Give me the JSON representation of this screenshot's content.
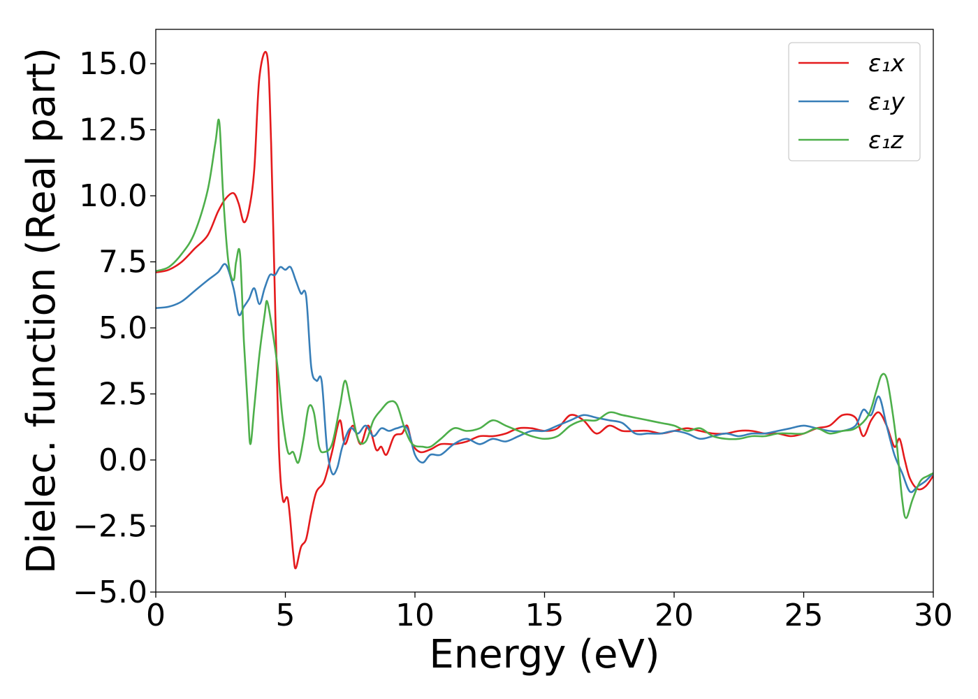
{
  "chart_data": {
    "type": "line",
    "title": "",
    "xlabel": "Energy (eV)",
    "ylabel": "Dielec. function (Real part)",
    "xlim": [
      0,
      30
    ],
    "ylim": [
      -5.0,
      16.3
    ],
    "xticks": [
      0,
      5,
      10,
      15,
      20,
      25,
      30
    ],
    "yticks": [
      -5.0,
      -2.5,
      0.0,
      2.5,
      5.0,
      7.5,
      10.0,
      12.5,
      15.0
    ],
    "xtick_labels": [
      "0",
      "5",
      "10",
      "15",
      "20",
      "25",
      "30"
    ],
    "ytick_labels": [
      "−5.0",
      "−2.5",
      "0.0",
      "2.5",
      "5.0",
      "7.5",
      "10.0",
      "12.5",
      "15.0"
    ],
    "grid": false,
    "legend_position": "top-right",
    "series": [
      {
        "name": "ε₁x",
        "color": "#e41a1c",
        "points": [
          [
            0,
            7.1
          ],
          [
            0.5,
            7.2
          ],
          [
            1.0,
            7.5
          ],
          [
            1.5,
            8.0
          ],
          [
            2.0,
            8.5
          ],
          [
            2.4,
            9.4
          ],
          [
            2.7,
            9.9
          ],
          [
            3.0,
            10.1
          ],
          [
            3.2,
            9.7
          ],
          [
            3.4,
            9.0
          ],
          [
            3.6,
            9.5
          ],
          [
            3.8,
            11.0
          ],
          [
            4.0,
            14.5
          ],
          [
            4.3,
            15.3
          ],
          [
            4.45,
            12.0
          ],
          [
            4.6,
            6.0
          ],
          [
            4.75,
            0.5
          ],
          [
            4.9,
            -1.5
          ],
          [
            5.1,
            -1.5
          ],
          [
            5.3,
            -3.5
          ],
          [
            5.4,
            -4.1
          ],
          [
            5.6,
            -3.3
          ],
          [
            5.8,
            -3.0
          ],
          [
            6.0,
            -2.0
          ],
          [
            6.2,
            -1.2
          ],
          [
            6.5,
            -0.8
          ],
          [
            6.8,
            0.3
          ],
          [
            7.1,
            1.5
          ],
          [
            7.3,
            0.6
          ],
          [
            7.6,
            1.3
          ],
          [
            7.9,
            0.6
          ],
          [
            8.2,
            1.3
          ],
          [
            8.5,
            0.4
          ],
          [
            8.7,
            0.5
          ],
          [
            8.9,
            0.2
          ],
          [
            9.2,
            0.9
          ],
          [
            9.5,
            1.0
          ],
          [
            9.7,
            1.3
          ],
          [
            9.9,
            0.6
          ],
          [
            10.2,
            0.3
          ],
          [
            10.6,
            0.4
          ],
          [
            11.0,
            0.6
          ],
          [
            11.5,
            0.6
          ],
          [
            12.0,
            0.7
          ],
          [
            12.5,
            0.9
          ],
          [
            13.0,
            0.9
          ],
          [
            13.5,
            1.0
          ],
          [
            14.0,
            1.2
          ],
          [
            14.5,
            1.2
          ],
          [
            15.0,
            1.1
          ],
          [
            15.5,
            1.2
          ],
          [
            16.0,
            1.7
          ],
          [
            16.5,
            1.5
          ],
          [
            17.0,
            1.0
          ],
          [
            17.5,
            1.3
          ],
          [
            18.0,
            1.1
          ],
          [
            18.5,
            1.1
          ],
          [
            19.0,
            1.1
          ],
          [
            19.5,
            1.0
          ],
          [
            20.0,
            1.1
          ],
          [
            20.5,
            1.2
          ],
          [
            21.0,
            1.1
          ],
          [
            21.5,
            1.0
          ],
          [
            22.0,
            1.0
          ],
          [
            22.5,
            1.1
          ],
          [
            23.0,
            1.1
          ],
          [
            23.5,
            1.0
          ],
          [
            24.0,
            1.0
          ],
          [
            24.5,
            0.9
          ],
          [
            25.0,
            1.0
          ],
          [
            25.5,
            1.2
          ],
          [
            26.0,
            1.3
          ],
          [
            26.5,
            1.7
          ],
          [
            27.0,
            1.6
          ],
          [
            27.3,
            0.9
          ],
          [
            27.6,
            1.5
          ],
          [
            27.9,
            1.8
          ],
          [
            28.2,
            1.3
          ],
          [
            28.5,
            0.5
          ],
          [
            28.7,
            0.8
          ],
          [
            28.9,
            0.0
          ],
          [
            29.1,
            -0.7
          ],
          [
            29.4,
            -1.1
          ],
          [
            29.7,
            -1.0
          ],
          [
            30.0,
            -0.6
          ]
        ]
      },
      {
        "name": "ε₁y",
        "color": "#377eb8",
        "points": [
          [
            0,
            5.75
          ],
          [
            0.5,
            5.8
          ],
          [
            1.0,
            6.0
          ],
          [
            1.5,
            6.4
          ],
          [
            2.0,
            6.8
          ],
          [
            2.4,
            7.1
          ],
          [
            2.7,
            7.4
          ],
          [
            3.0,
            6.5
          ],
          [
            3.2,
            5.5
          ],
          [
            3.4,
            5.8
          ],
          [
            3.6,
            6.1
          ],
          [
            3.8,
            6.5
          ],
          [
            4.0,
            5.9
          ],
          [
            4.2,
            6.5
          ],
          [
            4.4,
            7.0
          ],
          [
            4.6,
            7.0
          ],
          [
            4.8,
            7.3
          ],
          [
            5.0,
            7.2
          ],
          [
            5.2,
            7.3
          ],
          [
            5.4,
            6.8
          ],
          [
            5.6,
            6.3
          ],
          [
            5.8,
            6.2
          ],
          [
            6.0,
            3.5
          ],
          [
            6.2,
            3.0
          ],
          [
            6.4,
            3.0
          ],
          [
            6.6,
            0.5
          ],
          [
            6.8,
            -0.5
          ],
          [
            7.0,
            -0.3
          ],
          [
            7.2,
            0.5
          ],
          [
            7.5,
            1.2
          ],
          [
            7.8,
            1.0
          ],
          [
            8.1,
            1.3
          ],
          [
            8.4,
            0.9
          ],
          [
            8.7,
            1.2
          ],
          [
            9.0,
            1.1
          ],
          [
            9.3,
            1.2
          ],
          [
            9.7,
            1.2
          ],
          [
            10.0,
            0.2
          ],
          [
            10.3,
            -0.1
          ],
          [
            10.6,
            0.2
          ],
          [
            11.0,
            0.2
          ],
          [
            11.5,
            0.6
          ],
          [
            12.0,
            0.8
          ],
          [
            12.5,
            0.6
          ],
          [
            13.0,
            0.8
          ],
          [
            13.5,
            0.7
          ],
          [
            14.0,
            0.9
          ],
          [
            14.5,
            1.1
          ],
          [
            15.0,
            1.1
          ],
          [
            15.5,
            1.3
          ],
          [
            16.0,
            1.5
          ],
          [
            16.5,
            1.7
          ],
          [
            17.0,
            1.6
          ],
          [
            17.5,
            1.5
          ],
          [
            18.0,
            1.4
          ],
          [
            18.5,
            1.0
          ],
          [
            19.0,
            1.0
          ],
          [
            19.5,
            1.0
          ],
          [
            20.0,
            1.1
          ],
          [
            20.5,
            1.0
          ],
          [
            21.0,
            0.8
          ],
          [
            21.5,
            0.9
          ],
          [
            22.0,
            1.0
          ],
          [
            22.5,
            0.9
          ],
          [
            23.0,
            1.0
          ],
          [
            23.5,
            1.0
          ],
          [
            24.0,
            1.1
          ],
          [
            24.5,
            1.2
          ],
          [
            25.0,
            1.3
          ],
          [
            25.5,
            1.2
          ],
          [
            26.0,
            1.1
          ],
          [
            26.5,
            1.1
          ],
          [
            27.0,
            1.3
          ],
          [
            27.3,
            1.9
          ],
          [
            27.6,
            1.7
          ],
          [
            27.9,
            2.4
          ],
          [
            28.2,
            1.3
          ],
          [
            28.5,
            0.2
          ],
          [
            28.8,
            -0.5
          ],
          [
            29.1,
            -1.2
          ],
          [
            29.4,
            -1.0
          ],
          [
            29.7,
            -0.8
          ],
          [
            30.0,
            -0.5
          ]
        ]
      },
      {
        "name": "ε₁z",
        "color": "#4daf4a",
        "points": [
          [
            0,
            7.15
          ],
          [
            0.5,
            7.3
          ],
          [
            1.0,
            7.8
          ],
          [
            1.5,
            8.6
          ],
          [
            2.0,
            10.2
          ],
          [
            2.3,
            12.0
          ],
          [
            2.45,
            12.8
          ],
          [
            2.6,
            10.0
          ],
          [
            2.8,
            7.5
          ],
          [
            3.0,
            6.8
          ],
          [
            3.1,
            7.5
          ],
          [
            3.25,
            7.8
          ],
          [
            3.4,
            4.5
          ],
          [
            3.55,
            2.0
          ],
          [
            3.65,
            0.6
          ],
          [
            3.8,
            2.0
          ],
          [
            4.0,
            4.0
          ],
          [
            4.2,
            5.5
          ],
          [
            4.3,
            6.0
          ],
          [
            4.5,
            4.9
          ],
          [
            4.7,
            3.5
          ],
          [
            4.9,
            1.5
          ],
          [
            5.1,
            0.3
          ],
          [
            5.3,
            0.3
          ],
          [
            5.5,
            -0.1
          ],
          [
            5.7,
            0.8
          ],
          [
            5.9,
            2.0
          ],
          [
            6.1,
            1.8
          ],
          [
            6.3,
            0.5
          ],
          [
            6.5,
            0.3
          ],
          [
            6.8,
            0.6
          ],
          [
            7.1,
            2.0
          ],
          [
            7.3,
            3.0
          ],
          [
            7.5,
            2.2
          ],
          [
            7.8,
            0.8
          ],
          [
            8.1,
            0.7
          ],
          [
            8.4,
            1.5
          ],
          [
            8.7,
            1.9
          ],
          [
            9.0,
            2.2
          ],
          [
            9.3,
            2.1
          ],
          [
            9.6,
            1.2
          ],
          [
            9.9,
            0.6
          ],
          [
            10.3,
            0.5
          ],
          [
            10.6,
            0.5
          ],
          [
            11.0,
            0.8
          ],
          [
            11.5,
            1.2
          ],
          [
            12.0,
            1.1
          ],
          [
            12.5,
            1.2
          ],
          [
            13.0,
            1.5
          ],
          [
            13.5,
            1.3
          ],
          [
            14.0,
            1.1
          ],
          [
            14.5,
            0.9
          ],
          [
            15.0,
            0.8
          ],
          [
            15.5,
            0.9
          ],
          [
            16.0,
            1.3
          ],
          [
            16.5,
            1.5
          ],
          [
            17.0,
            1.5
          ],
          [
            17.5,
            1.8
          ],
          [
            18.0,
            1.7
          ],
          [
            18.5,
            1.6
          ],
          [
            19.0,
            1.5
          ],
          [
            19.5,
            1.4
          ],
          [
            20.0,
            1.3
          ],
          [
            20.5,
            1.1
          ],
          [
            21.0,
            1.2
          ],
          [
            21.5,
            0.9
          ],
          [
            22.0,
            0.8
          ],
          [
            22.5,
            0.8
          ],
          [
            23.0,
            0.9
          ],
          [
            23.5,
            0.9
          ],
          [
            24.0,
            1.0
          ],
          [
            24.5,
            1.0
          ],
          [
            25.0,
            1.0
          ],
          [
            25.5,
            1.2
          ],
          [
            26.0,
            1.0
          ],
          [
            26.5,
            1.1
          ],
          [
            27.0,
            1.2
          ],
          [
            27.5,
            1.7
          ],
          [
            27.8,
            2.6
          ],
          [
            28.0,
            3.2
          ],
          [
            28.2,
            3.1
          ],
          [
            28.4,
            2.0
          ],
          [
            28.6,
            0.5
          ],
          [
            28.8,
            -1.5
          ],
          [
            28.95,
            -2.2
          ],
          [
            29.2,
            -1.5
          ],
          [
            29.5,
            -0.8
          ],
          [
            29.8,
            -0.6
          ],
          [
            30.0,
            -0.5
          ]
        ]
      }
    ]
  }
}
